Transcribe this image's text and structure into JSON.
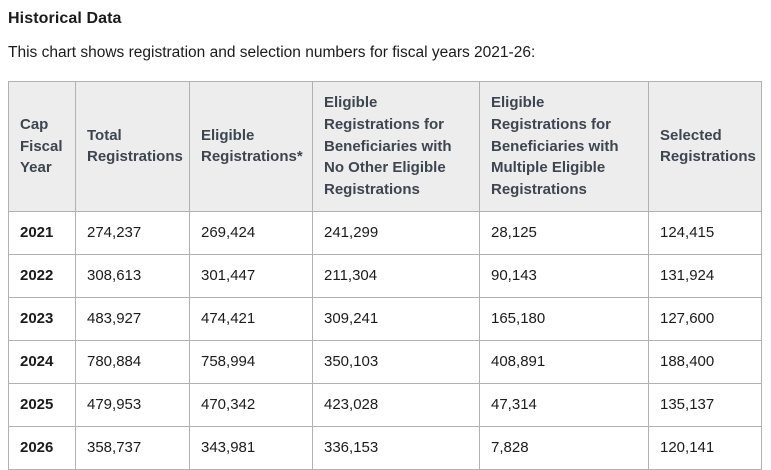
{
  "section": {
    "title": "Historical Data",
    "intro": "This chart shows registration and selection numbers for fiscal years 2021-26:"
  },
  "chart_data": {
    "type": "table",
    "title": "Historical Data",
    "columns": [
      "Cap Fiscal Year",
      "Total Registrations",
      "Eligible Registrations*",
      "Eligible Registrations for Beneficiaries with No Other Eligible Registrations",
      "Eligible Registrations for Beneficiaries with Multiple Eligible Registrations",
      "Selected Registrations"
    ],
    "rows": [
      [
        "2021",
        "274,237",
        "269,424",
        "241,299",
        "28,125",
        "124,415"
      ],
      [
        "2022",
        "308,613",
        "301,447",
        "211,304",
        "90,143",
        "131,924"
      ],
      [
        "2023",
        "483,927",
        "474,421",
        "309,241",
        "165,180",
        "127,600"
      ],
      [
        "2024",
        "780,884",
        "758,994",
        "350,103",
        "408,891",
        "188,400"
      ],
      [
        "2025",
        "479,953",
        "470,342",
        "423,028",
        "47,314",
        "135,137"
      ],
      [
        "2026",
        "358,737",
        "343,981",
        "336,153",
        "7,828",
        "120,141"
      ]
    ]
  },
  "colors": {
    "header_bg": "#ededed",
    "table_border": "#b1b1b1",
    "header_text": "#3d4551",
    "body_text": "#1b1b1b"
  }
}
